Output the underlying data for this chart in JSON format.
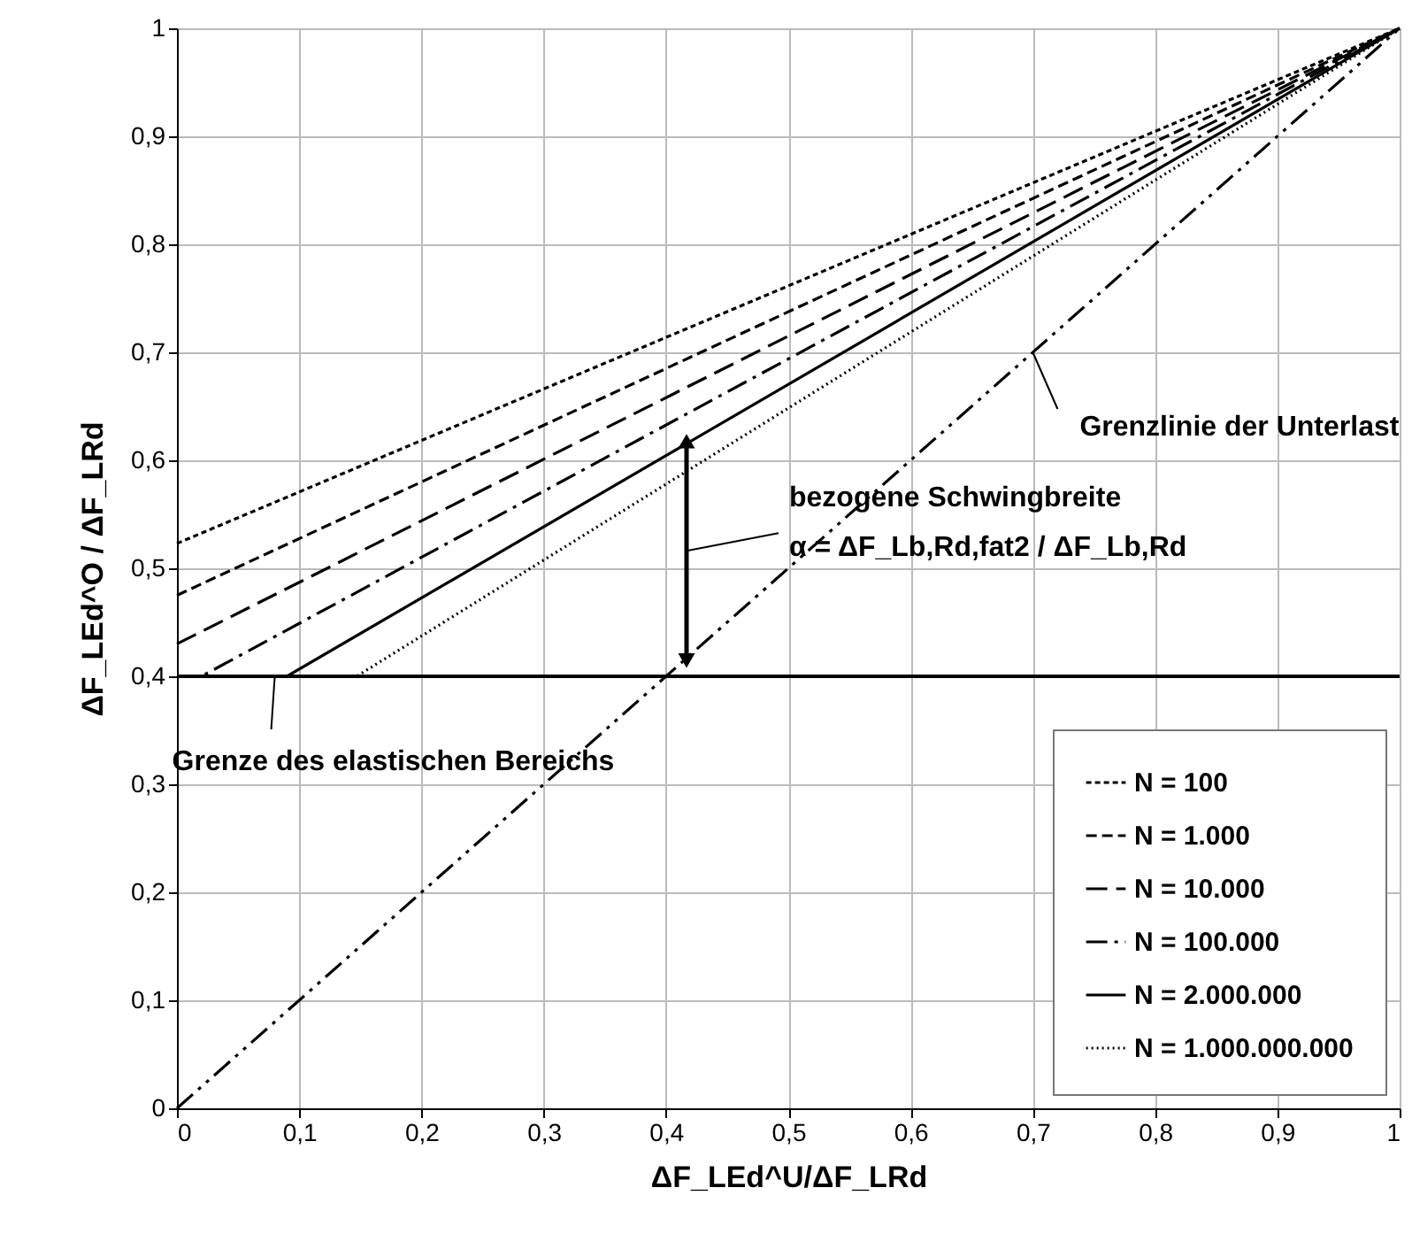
{
  "chart_data": {
    "type": "line",
    "xlabel": "ΔF_LEd^U/ΔF_LRd",
    "ylabel": "ΔF_LEd^O / ΔF_LRd",
    "xlim": [
      0,
      1
    ],
    "ylim": [
      0,
      1
    ],
    "xticks": [
      0,
      {
        "value": 0.1,
        "label": "0,1"
      },
      {
        "value": 0.2,
        "label": "0,2"
      },
      {
        "value": 0.3,
        "label": "0,3"
      },
      {
        "value": 0.4,
        "label": "0,4"
      },
      {
        "value": 0.5,
        "label": "0,5"
      },
      {
        "value": 0.6,
        "label": "0,6"
      },
      {
        "value": 0.7,
        "label": "0,7"
      },
      {
        "value": 0.8,
        "label": "0,8"
      },
      {
        "value": 0.9,
        "label": "0,9"
      },
      1
    ],
    "yticks": [
      0,
      {
        "value": 0.1,
        "label": "0,1"
      },
      {
        "value": 0.2,
        "label": "0,2"
      },
      {
        "value": 0.3,
        "label": "0,3"
      },
      {
        "value": 0.4,
        "label": "0,4"
      },
      {
        "value": 0.5,
        "label": "0,5"
      },
      {
        "value": 0.6,
        "label": "0,6"
      },
      {
        "value": 0.7,
        "label": "0,7"
      },
      {
        "value": 0.8,
        "label": "0,8"
      },
      {
        "value": 0.9,
        "label": "0,9"
      },
      1
    ],
    "grid": true,
    "legend": "bottom right",
    "marker": "none",
    "series": [
      {
        "name": "N = 100",
        "color": "#000000",
        "line_style": "dotted",
        "x": [
          0,
          1
        ],
        "values": [
          0.523,
          1
        ]
      },
      {
        "name": "N = 1.000",
        "color": "#000000",
        "line_style": "dashed",
        "x": [
          0,
          1
        ],
        "values": [
          0.475,
          1
        ]
      },
      {
        "name": "N = 10.000",
        "color": "#000000",
        "line_style": "longdash",
        "x": [
          0,
          1
        ],
        "values": [
          0.43,
          1
        ]
      },
      {
        "name": "N = 100.000",
        "color": "#000000",
        "line_style": "dashdot",
        "x": [
          0,
          0.02,
          1
        ],
        "values": [
          0.4,
          0.4,
          1
        ]
      },
      {
        "name": "N = 2.000.000",
        "color": "#000000",
        "line_style": "solid",
        "x": [
          0,
          0.09,
          1
        ],
        "values": [
          0.4,
          0.4,
          1
        ]
      },
      {
        "name": "N = 1.000.000.000",
        "color": "#000000",
        "line_style": "finedot",
        "x": [
          0,
          0.147,
          1
        ],
        "values": [
          0.4,
          0.4,
          1
        ]
      },
      {
        "color": "#000000",
        "line_style": "dashdotdot",
        "x": [
          0,
          1
        ],
        "values": [
          0,
          1
        ]
      }
    ],
    "ref_lines": [
      {
        "axis": "y",
        "value": 0.4,
        "color": "#000000",
        "line_style": "solid"
      }
    ],
    "annotations": [
      {
        "text": "Grenzlinie der Unterlast",
        "x": 0.7,
        "y": 0.7
      },
      "bezogene Schwingbreite",
      "α = ΔF_Lb,Rd,fat2 / ΔF_Lb,Rd",
      {
        "text": "Grenze des elastischen Bereichs",
        "x": 0.08,
        "y": 0.4
      }
    ]
  }
}
